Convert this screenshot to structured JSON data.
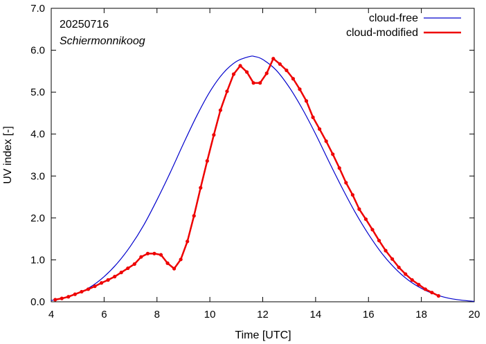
{
  "chart_data": {
    "type": "line",
    "xlabel": "Time  [UTC]",
    "ylabel": "UV index  [-]",
    "xlim": [
      4,
      20
    ],
    "ylim": [
      0,
      7
    ],
    "x_ticks": [
      "4",
      "6",
      "8",
      "10",
      "12",
      "14",
      "16",
      "18",
      "20"
    ],
    "y_ticks": [
      "0.0",
      "1.0",
      "2.0",
      "3.0",
      "4.0",
      "5.0",
      "6.0",
      "7.0"
    ],
    "grid": false,
    "legend_position": "top-right",
    "annotations": {
      "date": "20250716",
      "location": "Schiermonnikoog"
    },
    "series": [
      {
        "name": "cloud-free",
        "color": "#0000cc",
        "markers": false,
        "x": [
          4.0,
          4.5,
          5.0,
          5.5,
          6.0,
          6.5,
          7.0,
          7.5,
          8.0,
          8.5,
          9.0,
          9.5,
          10.0,
          10.5,
          11.0,
          11.5,
          11.7,
          12.0,
          12.5,
          13.0,
          13.5,
          14.0,
          14.5,
          15.0,
          15.5,
          16.0,
          16.5,
          17.0,
          17.5,
          18.0,
          18.5,
          19.0,
          19.5,
          20.0
        ],
        "y": [
          0.03,
          0.1,
          0.2,
          0.36,
          0.6,
          0.92,
          1.33,
          1.83,
          2.43,
          3.08,
          3.77,
          4.43,
          5.01,
          5.45,
          5.73,
          5.85,
          5.85,
          5.78,
          5.53,
          5.12,
          4.6,
          4.0,
          3.35,
          2.72,
          2.13,
          1.61,
          1.16,
          0.8,
          0.52,
          0.32,
          0.18,
          0.09,
          0.04,
          0.01
        ]
      },
      {
        "name": "cloud-modified",
        "color": "#ee0000",
        "markers": true,
        "x": [
          4.15,
          4.4,
          4.65,
          4.9,
          5.15,
          5.4,
          5.65,
          5.9,
          6.15,
          6.4,
          6.65,
          6.9,
          7.15,
          7.4,
          7.65,
          7.9,
          8.15,
          8.4,
          8.65,
          8.9,
          9.15,
          9.4,
          9.65,
          9.9,
          10.15,
          10.4,
          10.65,
          10.9,
          11.15,
          11.4,
          11.65,
          11.9,
          12.15,
          12.4,
          12.65,
          12.9,
          13.15,
          13.4,
          13.65,
          13.9,
          14.15,
          14.4,
          14.65,
          14.9,
          15.15,
          15.4,
          15.65,
          15.9,
          16.15,
          16.4,
          16.65,
          16.9,
          17.15,
          17.4,
          17.65,
          17.9,
          18.15,
          18.4,
          18.65
        ],
        "y": [
          0.05,
          0.08,
          0.12,
          0.18,
          0.24,
          0.3,
          0.37,
          0.45,
          0.52,
          0.6,
          0.7,
          0.8,
          0.9,
          1.07,
          1.15,
          1.15,
          1.12,
          0.92,
          0.79,
          1.01,
          1.44,
          2.05,
          2.72,
          3.36,
          3.98,
          4.57,
          5.02,
          5.43,
          5.63,
          5.48,
          5.22,
          5.22,
          5.45,
          5.8,
          5.67,
          5.52,
          5.32,
          5.07,
          4.79,
          4.4,
          4.12,
          3.83,
          3.52,
          3.19,
          2.84,
          2.55,
          2.21,
          1.97,
          1.72,
          1.46,
          1.22,
          1.02,
          0.82,
          0.66,
          0.52,
          0.41,
          0.3,
          0.22,
          0.14
        ]
      }
    ]
  }
}
